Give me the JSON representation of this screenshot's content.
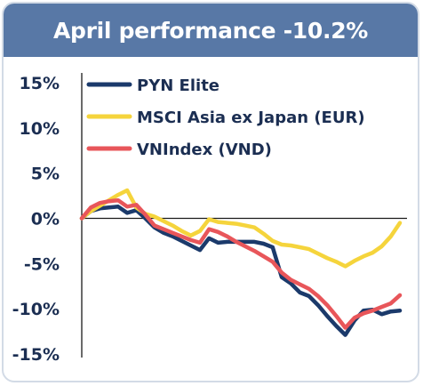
{
  "header": {
    "title": "April performance -10.2%"
  },
  "chart_data": {
    "type": "line",
    "title": "April performance -10.2%",
    "ylim": [
      -15,
      15
    ],
    "yticks": [
      "15%",
      "10%",
      "5%",
      "0%",
      "-5%",
      "-10%",
      "-15%"
    ],
    "ytick_values": [
      15,
      10,
      5,
      0,
      -5,
      -10,
      -15
    ],
    "zero_line": true,
    "legend_position": "top-right",
    "x": [
      0,
      1,
      2,
      3,
      4,
      5,
      6,
      7,
      8,
      9,
      10,
      11,
      12,
      13,
      14,
      15,
      16,
      17,
      18,
      19,
      20,
      21,
      22,
      23,
      24,
      25,
      26,
      27,
      28,
      29,
      30,
      31,
      32,
      33,
      34,
      35
    ],
    "series": [
      {
        "name": "PYN Elite",
        "color": "#1b3a6b",
        "values": [
          0,
          0.8,
          1.1,
          1.2,
          1.3,
          0.6,
          0.9,
          0,
          -1,
          -1.6,
          -2,
          -2.5,
          -3,
          -3.5,
          -2.2,
          -2.7,
          -2.6,
          -2.6,
          -2.6,
          -2.6,
          -2.8,
          -3.2,
          -6.5,
          -7.2,
          -8.2,
          -8.6,
          -9.6,
          -10.8,
          -11.9,
          -12.9,
          -11.3,
          -10.2,
          -10.1,
          -10.6,
          -10.3,
          -10.2
        ]
      },
      {
        "name": "MSCI Asia ex Japan (EUR)",
        "color": "#f5d43c",
        "values": [
          0,
          0.8,
          1.4,
          2,
          2.6,
          3.1,
          1.2,
          0.5,
          0.2,
          -0.3,
          -0.8,
          -1.4,
          -1.9,
          -1.4,
          -0.1,
          -0.4,
          -0.5,
          -0.6,
          -0.8,
          -1,
          -1.7,
          -2.5,
          -2.9,
          -3,
          -3.2,
          -3.4,
          -3.9,
          -4.4,
          -4.8,
          -5.3,
          -4.7,
          -4.2,
          -3.8,
          -3.1,
          -2,
          -0.5
        ]
      },
      {
        "name": "VNIndex (VND)",
        "color": "#e8565a",
        "values": [
          0,
          1.2,
          1.7,
          1.9,
          2,
          1.3,
          1.5,
          0.4,
          -0.8,
          -1.2,
          -1.6,
          -2,
          -2.4,
          -2.7,
          -1.2,
          -1.5,
          -2,
          -2.6,
          -3.1,
          -3.6,
          -4.2,
          -4.8,
          -6,
          -6.8,
          -7.3,
          -7.8,
          -8.6,
          -9.6,
          -10.8,
          -12.1,
          -11,
          -10.5,
          -10.2,
          -9.8,
          -9.4,
          -8.5
        ]
      }
    ]
  }
}
